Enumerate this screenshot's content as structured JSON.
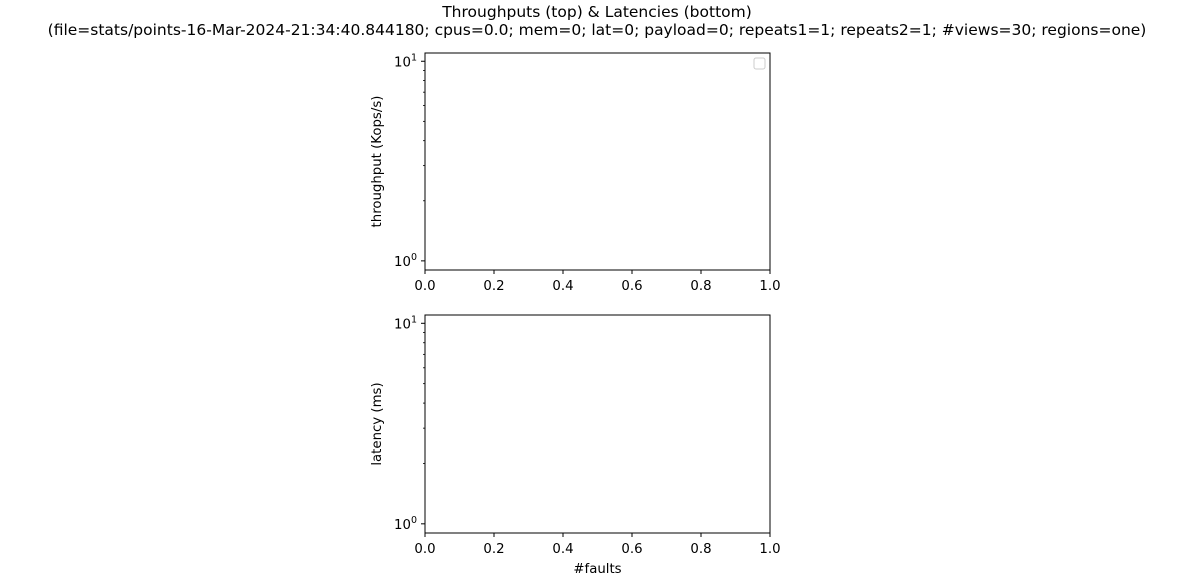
{
  "figure": {
    "title_line1": "Throughputs (top) & Latencies (bottom)",
    "title_line2": "(file=stats/points-16-Mar-2024-21:34:40.844180; cpus=0.0; mem=0; lat=0; payload=0; repeats1=1; repeats2=1; #views=30; regions=one)"
  },
  "chart_data": [
    {
      "type": "line",
      "title": "",
      "xlabel": "",
      "ylabel": "throughput (Kops/s)",
      "xlim": [
        0,
        1
      ],
      "ylim": [
        0.9,
        11
      ],
      "yscale": "log",
      "x_ticks": [
        "0.0",
        "0.2",
        "0.4",
        "0.6",
        "0.8",
        "1.0"
      ],
      "y_ticks": [
        {
          "base": "10",
          "exp": "0"
        },
        {
          "base": "10",
          "exp": "1"
        }
      ],
      "series": [],
      "legend": "top-right (empty)",
      "grid": false
    },
    {
      "type": "line",
      "title": "",
      "xlabel": "#faults",
      "ylabel": "latency (ms)",
      "xlim": [
        0,
        1
      ],
      "ylim": [
        0.9,
        11
      ],
      "yscale": "log",
      "x_ticks": [
        "0.0",
        "0.2",
        "0.4",
        "0.6",
        "0.8",
        "1.0"
      ],
      "y_ticks": [
        {
          "base": "10",
          "exp": "0"
        },
        {
          "base": "10",
          "exp": "1"
        }
      ],
      "series": [],
      "grid": false
    }
  ]
}
